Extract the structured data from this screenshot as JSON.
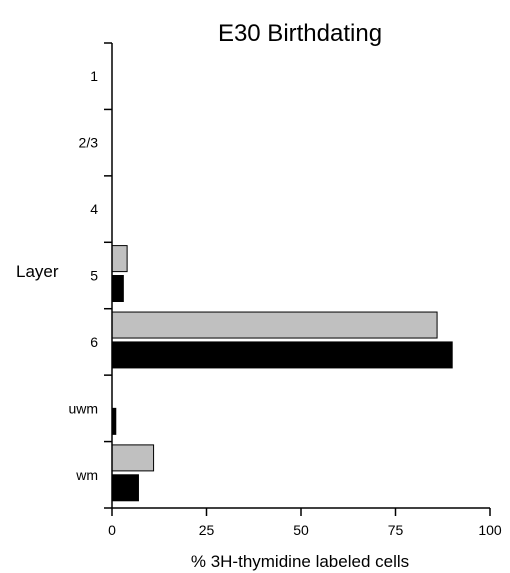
{
  "chart_data": {
    "type": "bar",
    "orientation": "horizontal",
    "title": "E30 Birthdating",
    "ylabel": "Layer",
    "xlabel": "% 3H-thymidine labeled cells",
    "categories": [
      "1",
      "2/3",
      "4",
      "5",
      "6",
      "uwm",
      "wm"
    ],
    "series": [
      {
        "color": "#c0c0c0",
        "values": [
          0,
          0,
          0,
          4,
          86,
          0,
          11
        ]
      },
      {
        "color": "#000000",
        "values": [
          0,
          0,
          0,
          3,
          90,
          1,
          7
        ]
      }
    ],
    "xlim": [
      0,
      100
    ],
    "xticks": [
      "0",
      "25",
      "50",
      "75",
      "100"
    ],
    "grid": false,
    "legend": "none"
  }
}
